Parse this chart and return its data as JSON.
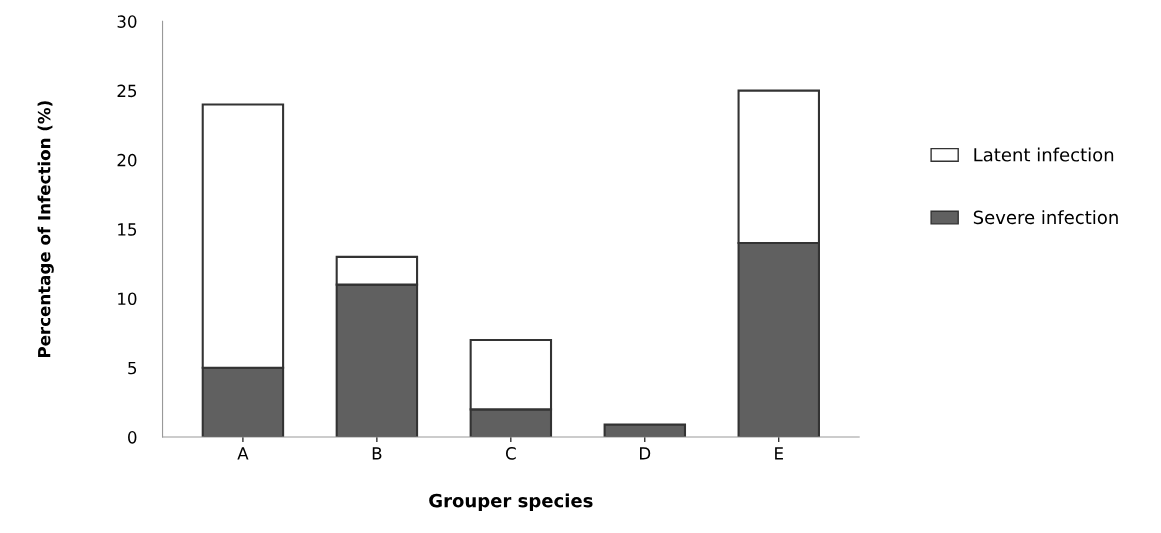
{
  "chart_data": {
    "type": "bar",
    "stacked": true,
    "xlabel": "Grouper species",
    "ylabel": "Percentage of Infection (%)",
    "categories": [
      "A",
      "B",
      "C",
      "D",
      "E"
    ],
    "series": [
      {
        "name": "Severe infection",
        "color": "#606060",
        "values": [
          5,
          11,
          2,
          0.9,
          14
        ]
      },
      {
        "name": "Latent infection",
        "color": "#ffffff",
        "values": [
          19,
          2,
          5,
          null,
          11
        ]
      }
    ],
    "ylim": [
      0,
      30
    ],
    "yticks": [
      0,
      5,
      10,
      15,
      20,
      25,
      30
    ],
    "grid": false,
    "legend": "right"
  }
}
